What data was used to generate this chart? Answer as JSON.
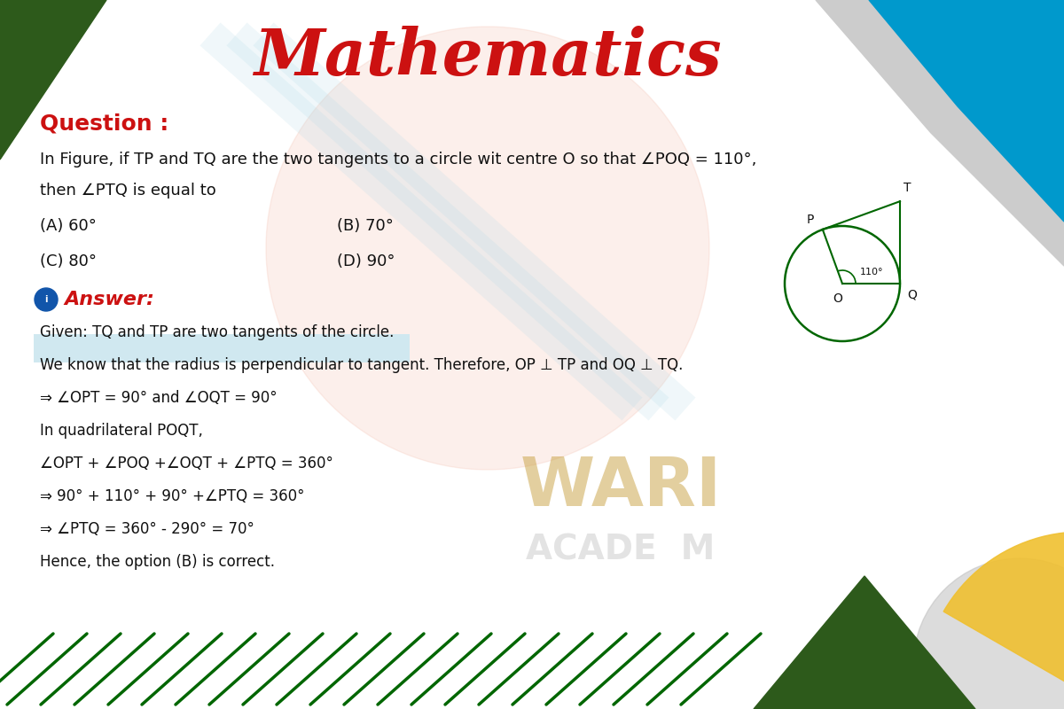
{
  "title": "Mathematics",
  "title_color": "#cc1111",
  "bg_color": "#ffffff",
  "question_label": "Question :",
  "question_label_color": "#cc1111",
  "question_text1": "In Figure, if TP and TQ are the two tangents to a circle wit centre O so that ∠POQ = 110°,",
  "question_text2": "then ∠PTQ is equal to",
  "options_A": "(A) 60°",
  "options_B": "(B) 70°",
  "options_C": "(C) 80°",
  "options_D": "(D) 90°",
  "answer_label": "Answer:",
  "answer_label_color": "#cc1111",
  "answer_line1": "Given: TQ and TP are two tangents of the circle.",
  "answer_line2": "We know that the radius is perpendicular to tangent. Therefore, OP ⊥ TP and OQ ⊥ TQ.",
  "answer_line3": "⇒ ∠OPT = 90° and ∠OQT = 90°",
  "answer_line4": "In quadrilateral POQT,",
  "answer_line5": "∠OPT + ∠POQ +∠OQT + ∠PTQ = 360°",
  "answer_line6": "⇒ 90° + 110° + 90° +∠PTQ = 360°",
  "answer_line7": "⇒ ∠PTQ = 360° - 290° = 70°",
  "answer_line8": "Hence, the option (B) is correct.",
  "diagram_circle_color": "#006600",
  "watermark_text": "WARI",
  "watermark_color": "#c8a040",
  "watermark2_text": "ACADE  M",
  "watermark2_color": "#c8c8c8",
  "stripe_color": "#006600",
  "highlight_color": "#d0e8f0",
  "corner_tl_color": "#2d5a1b",
  "corner_tr_color": "#0099cc",
  "corner_br_gray": "#aaaaaa",
  "corner_br_yellow": "#f0c030",
  "corner_br_green": "#2d5a1b"
}
